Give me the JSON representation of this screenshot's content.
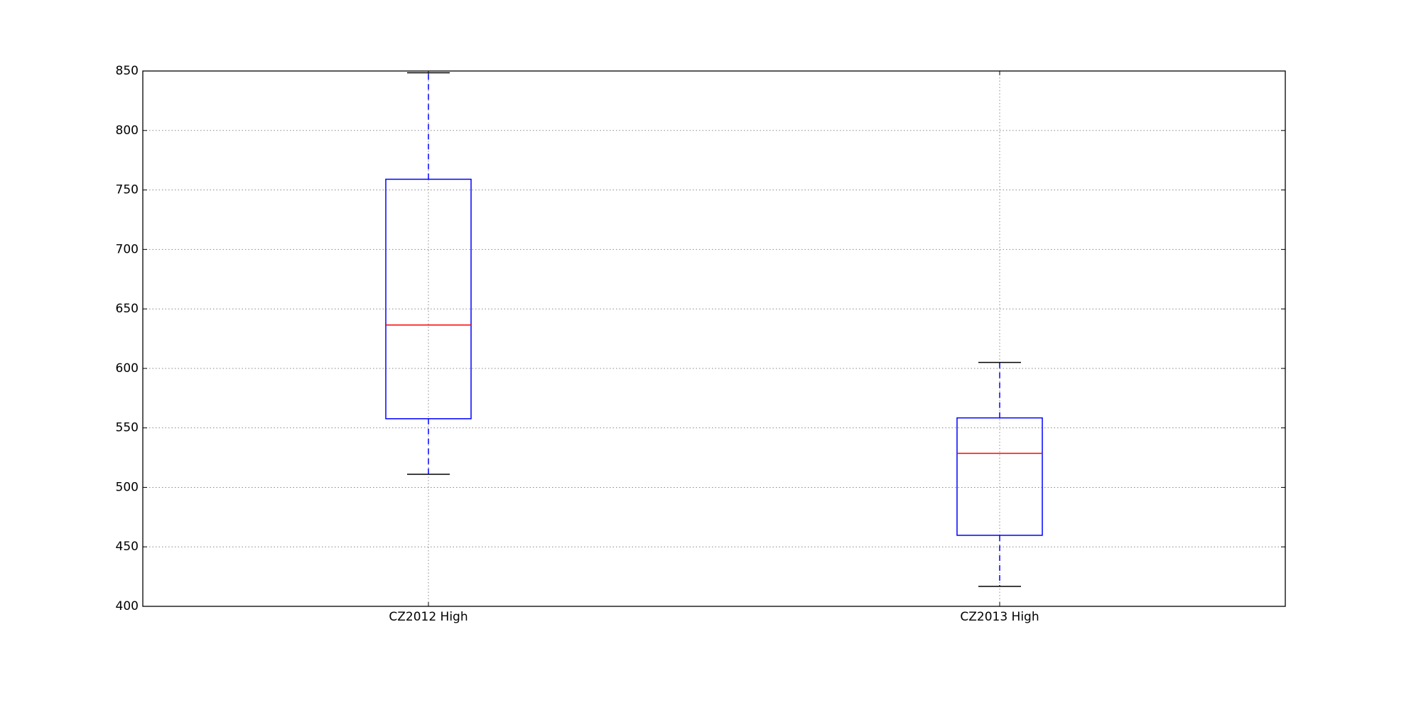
{
  "chart_data": {
    "type": "box",
    "categories": [
      "CZ2012 High",
      "CZ2013 High"
    ],
    "boxes": [
      {
        "min": 511,
        "q1": 557.7,
        "median": 636.5,
        "q3": 759,
        "max": 848.5
      },
      {
        "min": 416.8,
        "q1": 459.7,
        "median": 528.6,
        "q3": 558.4,
        "max": 605
      }
    ],
    "box_color": "#0000ff",
    "median_color": "#ff0000",
    "cap_color": "#000000",
    "ylim": [
      400,
      850
    ],
    "yticks": [
      400,
      450,
      500,
      550,
      600,
      650,
      700,
      750,
      800,
      850
    ],
    "grid": true
  }
}
